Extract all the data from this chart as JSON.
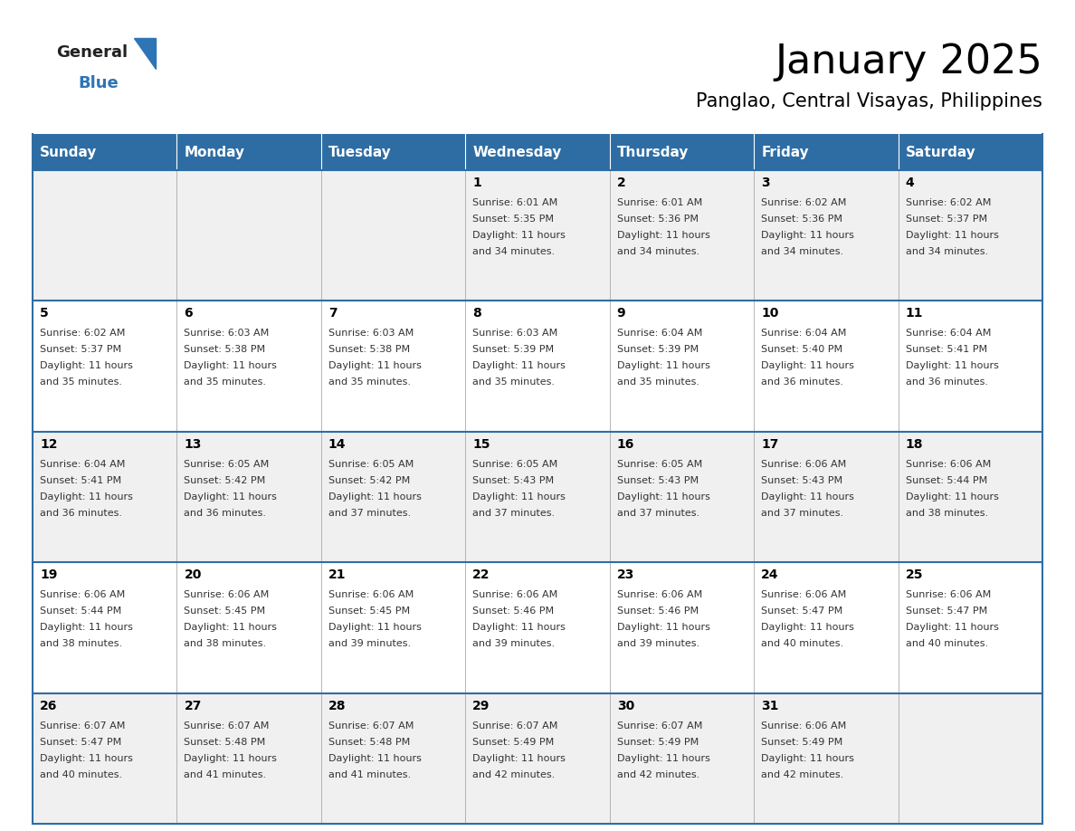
{
  "title": "January 2025",
  "subtitle": "Panglao, Central Visayas, Philippines",
  "header_bg_color": "#2E6DA4",
  "header_text_color": "#FFFFFF",
  "row_bg_even": "#F0F0F0",
  "row_bg_odd": "#FFFFFF",
  "day_header_font_size": 11,
  "cell_day_font_size": 10,
  "cell_text_font_size": 8,
  "title_font_size": 32,
  "subtitle_font_size": 15,
  "days_of_week": [
    "Sunday",
    "Monday",
    "Tuesday",
    "Wednesday",
    "Thursday",
    "Friday",
    "Saturday"
  ],
  "weeks": [
    [
      {
        "day": "",
        "sunrise": "",
        "sunset": "",
        "daylight_h": "",
        "daylight_m": ""
      },
      {
        "day": "",
        "sunrise": "",
        "sunset": "",
        "daylight_h": "",
        "daylight_m": ""
      },
      {
        "day": "",
        "sunrise": "",
        "sunset": "",
        "daylight_h": "",
        "daylight_m": ""
      },
      {
        "day": "1",
        "sunrise": "6:01 AM",
        "sunset": "5:35 PM",
        "daylight_h": "11",
        "daylight_m": "34"
      },
      {
        "day": "2",
        "sunrise": "6:01 AM",
        "sunset": "5:36 PM",
        "daylight_h": "11",
        "daylight_m": "34"
      },
      {
        "day": "3",
        "sunrise": "6:02 AM",
        "sunset": "5:36 PM",
        "daylight_h": "11",
        "daylight_m": "34"
      },
      {
        "day": "4",
        "sunrise": "6:02 AM",
        "sunset": "5:37 PM",
        "daylight_h": "11",
        "daylight_m": "34"
      }
    ],
    [
      {
        "day": "5",
        "sunrise": "6:02 AM",
        "sunset": "5:37 PM",
        "daylight_h": "11",
        "daylight_m": "35"
      },
      {
        "day": "6",
        "sunrise": "6:03 AM",
        "sunset": "5:38 PM",
        "daylight_h": "11",
        "daylight_m": "35"
      },
      {
        "day": "7",
        "sunrise": "6:03 AM",
        "sunset": "5:38 PM",
        "daylight_h": "11",
        "daylight_m": "35"
      },
      {
        "day": "8",
        "sunrise": "6:03 AM",
        "sunset": "5:39 PM",
        "daylight_h": "11",
        "daylight_m": "35"
      },
      {
        "day": "9",
        "sunrise": "6:04 AM",
        "sunset": "5:39 PM",
        "daylight_h": "11",
        "daylight_m": "35"
      },
      {
        "day": "10",
        "sunrise": "6:04 AM",
        "sunset": "5:40 PM",
        "daylight_h": "11",
        "daylight_m": "36"
      },
      {
        "day": "11",
        "sunrise": "6:04 AM",
        "sunset": "5:41 PM",
        "daylight_h": "11",
        "daylight_m": "36"
      }
    ],
    [
      {
        "day": "12",
        "sunrise": "6:04 AM",
        "sunset": "5:41 PM",
        "daylight_h": "11",
        "daylight_m": "36"
      },
      {
        "day": "13",
        "sunrise": "6:05 AM",
        "sunset": "5:42 PM",
        "daylight_h": "11",
        "daylight_m": "36"
      },
      {
        "day": "14",
        "sunrise": "6:05 AM",
        "sunset": "5:42 PM",
        "daylight_h": "11",
        "daylight_m": "37"
      },
      {
        "day": "15",
        "sunrise": "6:05 AM",
        "sunset": "5:43 PM",
        "daylight_h": "11",
        "daylight_m": "37"
      },
      {
        "day": "16",
        "sunrise": "6:05 AM",
        "sunset": "5:43 PM",
        "daylight_h": "11",
        "daylight_m": "37"
      },
      {
        "day": "17",
        "sunrise": "6:06 AM",
        "sunset": "5:43 PM",
        "daylight_h": "11",
        "daylight_m": "37"
      },
      {
        "day": "18",
        "sunrise": "6:06 AM",
        "sunset": "5:44 PM",
        "daylight_h": "11",
        "daylight_m": "38"
      }
    ],
    [
      {
        "day": "19",
        "sunrise": "6:06 AM",
        "sunset": "5:44 PM",
        "daylight_h": "11",
        "daylight_m": "38"
      },
      {
        "day": "20",
        "sunrise": "6:06 AM",
        "sunset": "5:45 PM",
        "daylight_h": "11",
        "daylight_m": "38"
      },
      {
        "day": "21",
        "sunrise": "6:06 AM",
        "sunset": "5:45 PM",
        "daylight_h": "11",
        "daylight_m": "39"
      },
      {
        "day": "22",
        "sunrise": "6:06 AM",
        "sunset": "5:46 PM",
        "daylight_h": "11",
        "daylight_m": "39"
      },
      {
        "day": "23",
        "sunrise": "6:06 AM",
        "sunset": "5:46 PM",
        "daylight_h": "11",
        "daylight_m": "39"
      },
      {
        "day": "24",
        "sunrise": "6:06 AM",
        "sunset": "5:47 PM",
        "daylight_h": "11",
        "daylight_m": "40"
      },
      {
        "day": "25",
        "sunrise": "6:06 AM",
        "sunset": "5:47 PM",
        "daylight_h": "11",
        "daylight_m": "40"
      }
    ],
    [
      {
        "day": "26",
        "sunrise": "6:07 AM",
        "sunset": "5:47 PM",
        "daylight_h": "11",
        "daylight_m": "40"
      },
      {
        "day": "27",
        "sunrise": "6:07 AM",
        "sunset": "5:48 PM",
        "daylight_h": "11",
        "daylight_m": "41"
      },
      {
        "day": "28",
        "sunrise": "6:07 AM",
        "sunset": "5:48 PM",
        "daylight_h": "11",
        "daylight_m": "41"
      },
      {
        "day": "29",
        "sunrise": "6:07 AM",
        "sunset": "5:49 PM",
        "daylight_h": "11",
        "daylight_m": "42"
      },
      {
        "day": "30",
        "sunrise": "6:07 AM",
        "sunset": "5:49 PM",
        "daylight_h": "11",
        "daylight_m": "42"
      },
      {
        "day": "31",
        "sunrise": "6:06 AM",
        "sunset": "5:49 PM",
        "daylight_h": "11",
        "daylight_m": "42"
      },
      {
        "day": "",
        "sunrise": "",
        "sunset": "",
        "daylight_h": "",
        "daylight_m": ""
      }
    ]
  ],
  "logo_blue_color": "#2E75B6",
  "logo_dark_color": "#222222",
  "border_line_color": "#2E6DA4",
  "cell_border_color": "#AAAAAA"
}
